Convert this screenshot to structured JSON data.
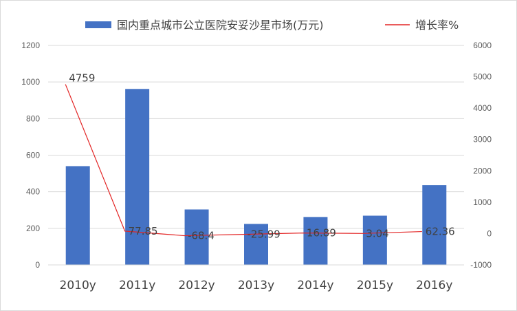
{
  "chart_data": {
    "type": "bar",
    "categories": [
      "2010y",
      "2011y",
      "2012y",
      "2013y",
      "2014y",
      "2015y",
      "2016y"
    ],
    "series": [
      {
        "name": "国内重点城市公立医院安妥沙星市场(万元)",
        "type": "bar",
        "axis": "left",
        "color": "#4472C4",
        "values": [
          540,
          962,
          303,
          224,
          262,
          269,
          436
        ]
      },
      {
        "name": "增长率%",
        "type": "line",
        "axis": "right",
        "color": "#E32626",
        "values": [
          4759,
          77.85,
          -68.4,
          -25.99,
          16.89,
          3.04,
          62.36
        ],
        "labels": [
          "4759",
          "77.85",
          "-68.4",
          "-25.99",
          "16.89",
          "3.04",
          "62.36"
        ]
      }
    ],
    "y_left": {
      "min": 0,
      "max": 1200,
      "ticks": [
        "0",
        "200",
        "400",
        "600",
        "800",
        "1000",
        "1200"
      ]
    },
    "y_right": {
      "min": -1000,
      "max": 6000,
      "ticks": [
        "-1000",
        "0",
        "1000",
        "2000",
        "3000",
        "4000",
        "5000",
        "6000"
      ]
    },
    "grid": true,
    "legend": "top"
  }
}
